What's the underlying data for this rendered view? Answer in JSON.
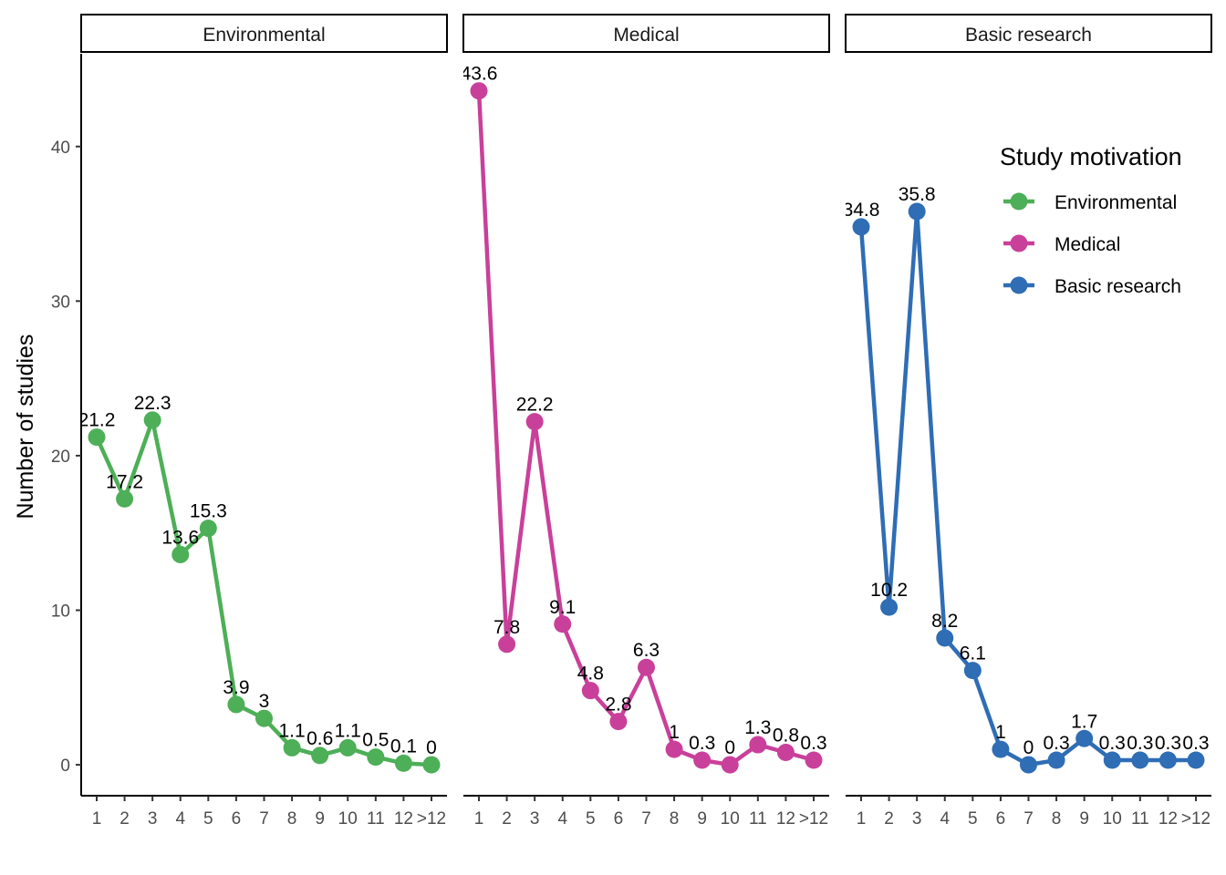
{
  "chart_data": {
    "type": "line",
    "ylabel": "Number of studies",
    "ylim": [
      -2,
      46
    ],
    "yticks": [
      0,
      10,
      20,
      30,
      40
    ],
    "categories": [
      "1",
      "2",
      "3",
      "4",
      "5",
      "6",
      "7",
      "8",
      "9",
      "10",
      "11",
      "12",
      ">12"
    ],
    "legend": {
      "title": "Study motivation",
      "position": "right"
    },
    "series": [
      {
        "name": "Environmental",
        "color": "#4daf57",
        "values": [
          21.2,
          17.2,
          22.3,
          13.6,
          15.3,
          3.9,
          3,
          1.1,
          0.6,
          1.1,
          0.5,
          0.1,
          0
        ],
        "labels": [
          "21.2",
          "17.2",
          "22.3",
          "13.6",
          "15.3",
          "3.9",
          "3",
          "1.1",
          "0.6",
          "1.1",
          "0.5",
          "0.1",
          "0"
        ]
      },
      {
        "name": "Medical",
        "color": "#c9409a",
        "values": [
          43.6,
          7.8,
          22.2,
          9.1,
          4.8,
          2.8,
          6.3,
          1,
          0.3,
          0,
          1.3,
          0.8,
          0.3
        ],
        "labels": [
          "43.6",
          "7.8",
          "22.2",
          "9.1",
          "4.8",
          "2.8",
          "6.3",
          "1",
          "0.3",
          "0",
          "1.3",
          "0.8",
          "0.3"
        ]
      },
      {
        "name": "Basic research",
        "color": "#2f6db5",
        "values": [
          34.8,
          10.2,
          35.8,
          8.2,
          6.1,
          1,
          0,
          0.3,
          1.7,
          0.3,
          0.3,
          0.3,
          0.3
        ],
        "labels": [
          "34.8",
          "10.2",
          "35.8",
          "8.2",
          "6.1",
          "1",
          "0",
          "0.3",
          "1.7",
          "0.3",
          "0.3",
          "0.3",
          "0.3"
        ]
      }
    ]
  }
}
